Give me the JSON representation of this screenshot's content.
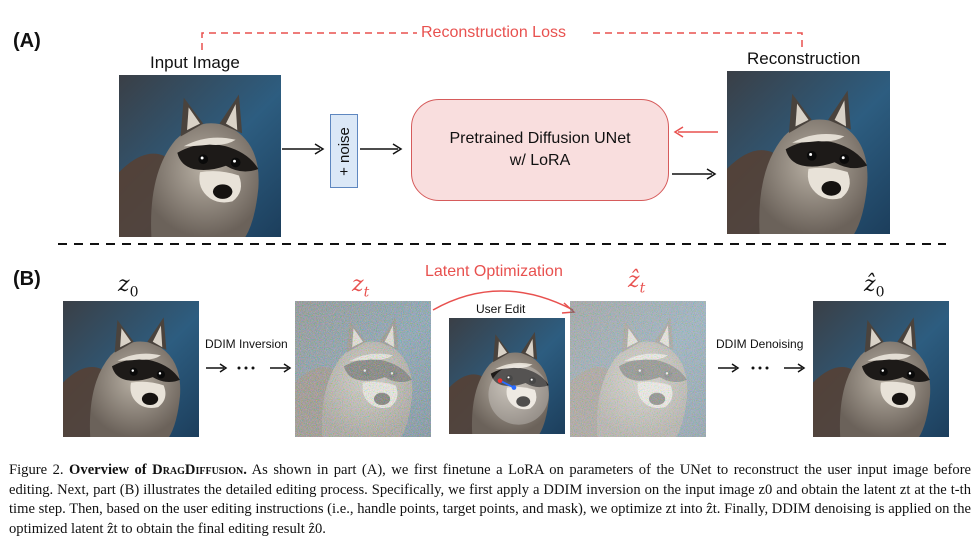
{
  "part_a": {
    "label": "(A)",
    "input_label": "Input Image",
    "recon_label": "Reconstruction",
    "loss_label": "Reconstruction Loss",
    "noise_label": "+ noise",
    "unet_line1": "Pretrained Diffusion UNet",
    "unet_line2": "w/ LoRA"
  },
  "part_b": {
    "label": "(B)",
    "z0_label": "z0",
    "zt_label": "zt",
    "zt_hat_label": "ẑt",
    "z0_hat_label": "ẑ0",
    "latent_opt_label": "Latent Optimization",
    "user_edit_label": "User Edit",
    "ddim_inversion_label": "DDIM Inversion",
    "ddim_denoising_label": "DDIM Denoising",
    "ellipsis": "···"
  },
  "caption": {
    "fig_num": "Figure 2.",
    "title_prefix": "Overview of",
    "title_name": "DragDiffusion",
    "body": "As shown in part (A), we first finetune a LoRA on parameters of the UNet to reconstruct the user input image before editing. Next, part (B) illustrates the detailed editing process. Specifically, we first apply a DDIM inversion on the input image z0 and obtain the latent zt at the t-th time step. Then, based on the user editing instructions (i.e., handle points, target points, and mask), we optimize zt into ẑt. Finally, DDIM denoising is applied on the optimized latent ẑt to obtain the final editing result ẑ0."
  },
  "colors": {
    "accent_red": "#e8514f",
    "unet_fill": "#f9dede",
    "noise_fill": "#dbe8f7"
  }
}
